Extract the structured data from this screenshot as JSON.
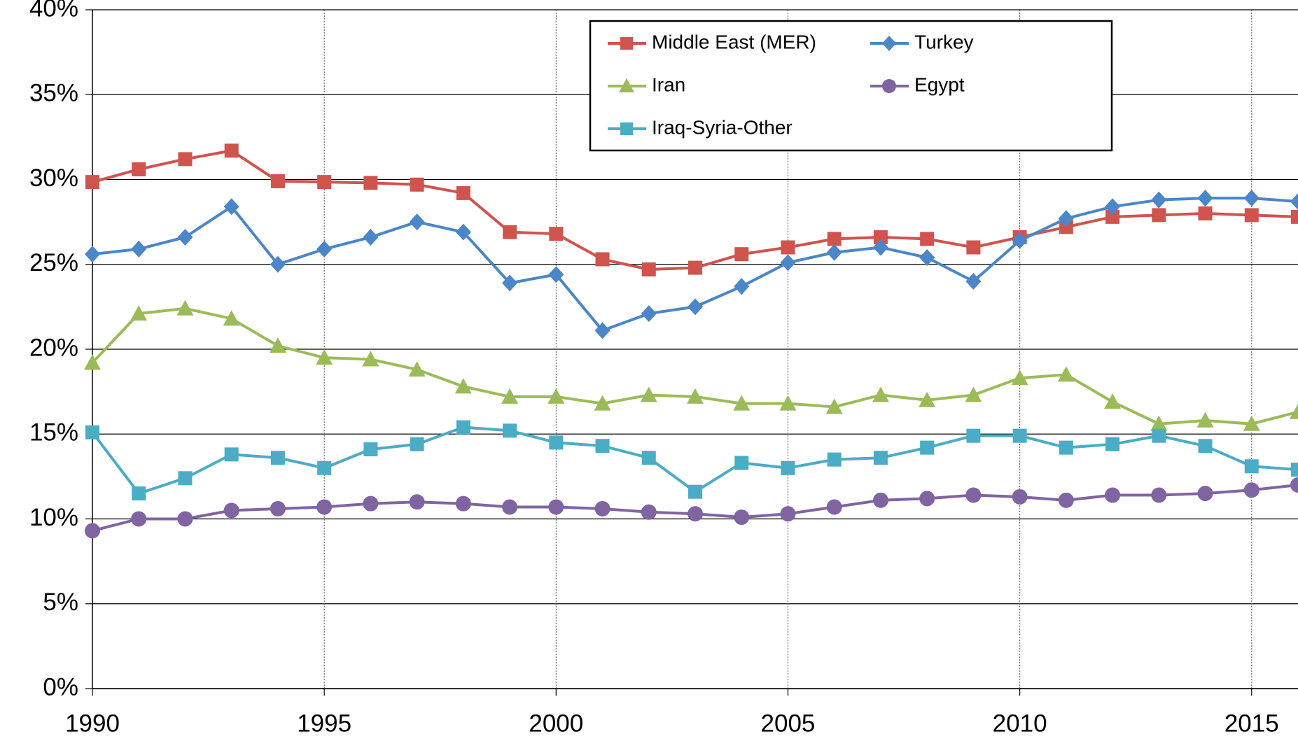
{
  "chart_data": {
    "type": "line",
    "x": [
      1990,
      1991,
      1992,
      1993,
      1994,
      1995,
      1996,
      1997,
      1998,
      1999,
      2000,
      2001,
      2002,
      2003,
      2004,
      2005,
      2006,
      2007,
      2008,
      2009,
      2010,
      2011,
      2012,
      2013,
      2014,
      2015,
      2016
    ],
    "series": [
      {
        "name": "Middle East (MER)",
        "color": "#d0534e",
        "marker": "square",
        "values": [
          29.85,
          30.6,
          31.2,
          31.7,
          29.9,
          29.85,
          29.8,
          29.7,
          29.2,
          26.9,
          26.8,
          25.3,
          24.7,
          24.8,
          25.6,
          26.0,
          26.5,
          26.6,
          26.5,
          26.0,
          26.6,
          27.2,
          27.8,
          27.9,
          28.0,
          27.9,
          27.8
        ]
      },
      {
        "name": "Turkey",
        "color": "#4a86c8",
        "marker": "diamond",
        "values": [
          25.6,
          25.9,
          26.6,
          28.4,
          25.0,
          25.9,
          26.6,
          27.5,
          26.9,
          23.9,
          24.4,
          21.1,
          22.1,
          22.5,
          23.7,
          25.1,
          25.7,
          26.0,
          25.4,
          24.0,
          26.4,
          27.7,
          28.4,
          28.8,
          28.9,
          28.9,
          28.7
        ]
      },
      {
        "name": "Iran",
        "color": "#9bbb59",
        "marker": "triangle",
        "values": [
          19.2,
          22.1,
          22.4,
          21.8,
          20.2,
          19.5,
          19.4,
          18.8,
          17.8,
          17.2,
          17.2,
          16.8,
          17.3,
          17.2,
          16.8,
          16.8,
          16.6,
          17.3,
          17.0,
          17.3,
          18.3,
          18.5,
          16.9,
          15.6,
          15.8,
          15.6,
          16.3
        ]
      },
      {
        "name": "Egypt",
        "color": "#8064a2",
        "marker": "circle",
        "values": [
          9.3,
          10.0,
          10.0,
          10.5,
          10.6,
          10.7,
          10.9,
          11.0,
          10.9,
          10.7,
          10.7,
          10.6,
          10.4,
          10.3,
          10.1,
          10.3,
          10.7,
          11.1,
          11.2,
          11.4,
          11.3,
          11.1,
          11.4,
          11.4,
          11.5,
          11.7,
          12.0
        ]
      },
      {
        "name": "Iraq-Syria-Other",
        "color": "#4bacc6",
        "marker": "square",
        "values": [
          15.1,
          11.5,
          12.4,
          13.8,
          13.6,
          13.0,
          14.1,
          14.4,
          15.4,
          15.2,
          14.5,
          14.3,
          13.6,
          11.6,
          13.3,
          13.0,
          13.5,
          13.6,
          14.2,
          14.9,
          14.9,
          14.2,
          14.4,
          14.9,
          14.3,
          13.1,
          12.9
        ]
      }
    ],
    "xlim": [
      1990,
      2016
    ],
    "xticks": [
      1990,
      1995,
      2000,
      2005,
      2010,
      2015
    ],
    "ylim": [
      0,
      40
    ],
    "yticks": [
      {
        "value": 0,
        "label": "0%"
      },
      {
        "value": 5,
        "label": "5%"
      },
      {
        "value": 10,
        "label": "10%"
      },
      {
        "value": 15,
        "label": "15%"
      },
      {
        "value": 20,
        "label": "20%"
      },
      {
        "value": 25,
        "label": "25%"
      },
      {
        "value": 30,
        "label": "30%"
      },
      {
        "value": 35,
        "label": "35%"
      },
      {
        "value": 40,
        "label": "40%"
      }
    ],
    "grid": true,
    "legend": "upper center"
  }
}
